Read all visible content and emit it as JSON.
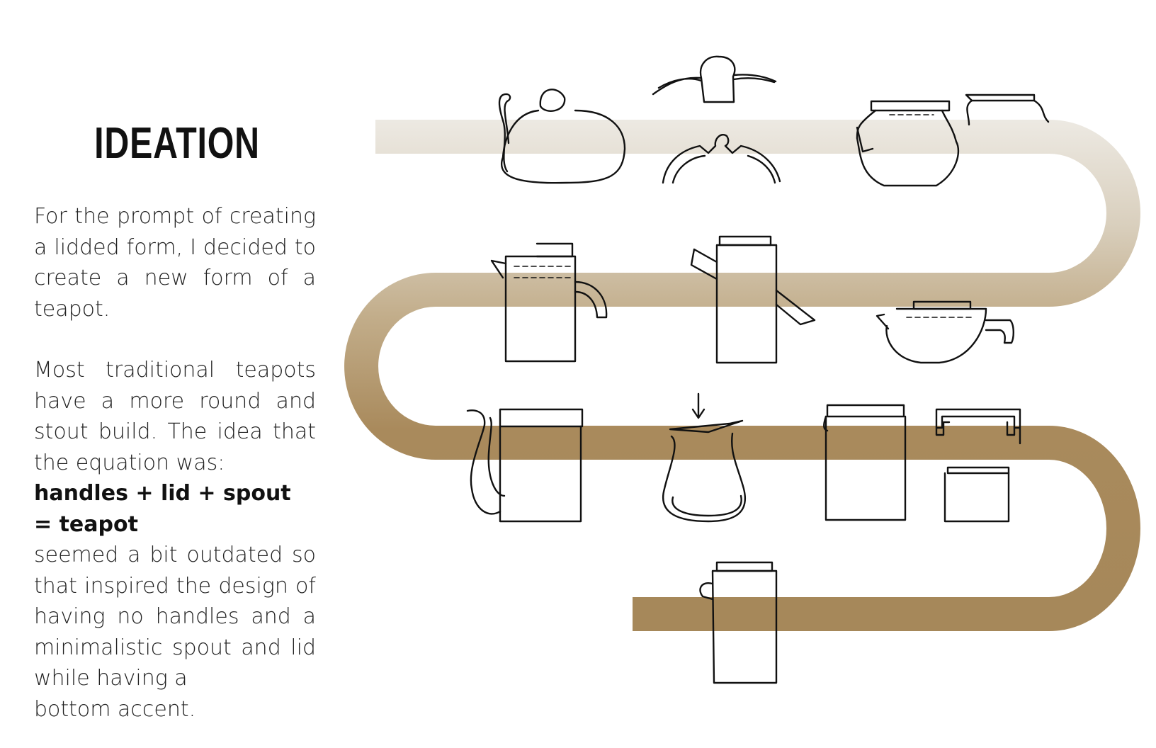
{
  "title": "IDEATION",
  "paragraph1": "For the prompt of creating a lidded form, I decided to create a new form of a teapot.",
  "paragraph2": "Most traditional teapots have a more round and stout build. The idea that the equation was:",
  "equation": "handles + lid + spout = teapot",
  "paragraph3_main": "seemed a bit outdated so that inspired the design of having no handles and a minimalistic spout and lid while having a",
  "paragraph3_last": "bottom accent.",
  "colors": {
    "path_light": "#eeebe5",
    "path_mid": "#c2ad8a",
    "path_dark": "#a6885a",
    "sketch_ink": "#111111"
  }
}
